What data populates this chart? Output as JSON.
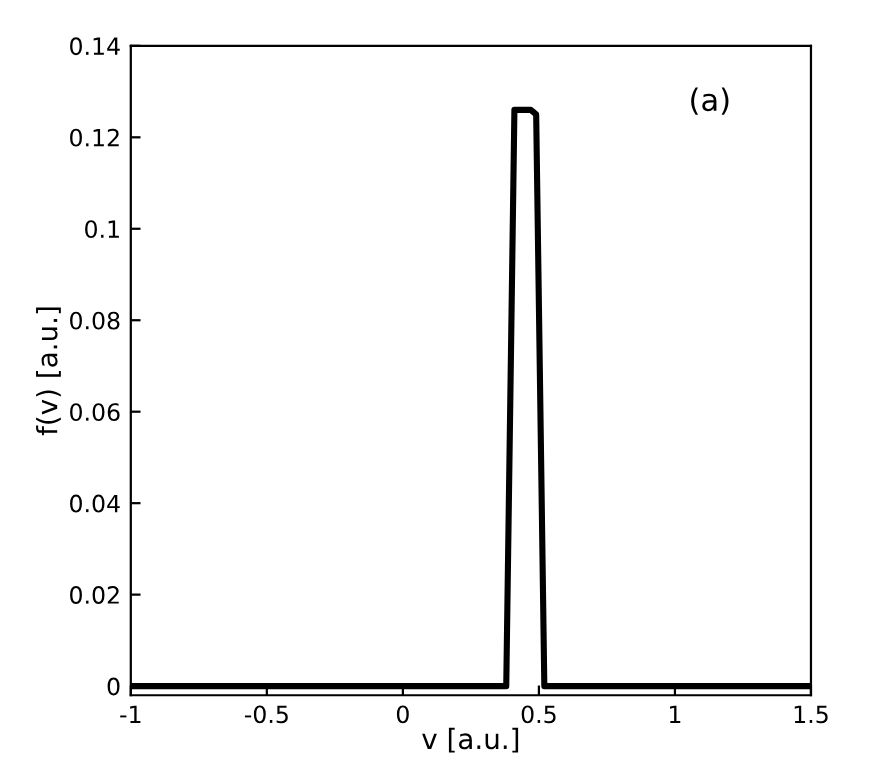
{
  "chart_data": {
    "type": "line",
    "xlabel": "v [a.u.]",
    "ylabel": "f(v) [a.u.]",
    "annotations": [
      "(a)"
    ],
    "x": [
      -1,
      0.38,
      0.41,
      0.43,
      0.47,
      0.49,
      0.52,
      1.5
    ],
    "series": [
      {
        "color": "#000000",
        "values": [
          0,
          0,
          0.126,
          0.126,
          0.126,
          0.125,
          0,
          0
        ]
      }
    ],
    "xlim": [
      -1,
      1.5
    ],
    "ylim": [
      -0.002,
      0.14
    ],
    "xticks": [
      -1,
      -0.5,
      0,
      0.5,
      1,
      1.5
    ],
    "yticks": [
      0,
      0.02,
      0.04,
      0.06,
      0.08,
      0.1,
      0.12,
      0.14
    ],
    "grid": false,
    "marker": "none",
    "line_style": "solid"
  }
}
